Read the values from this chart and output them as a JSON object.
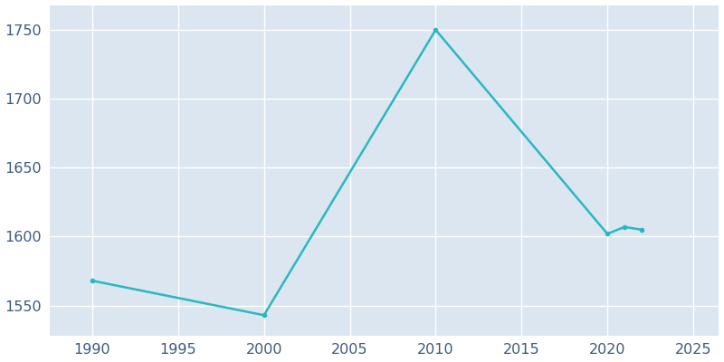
{
  "years": [
    1990,
    2000,
    2010,
    2020,
    2021,
    2022
  ],
  "population": [
    1568,
    1543,
    1750,
    1602,
    1607,
    1605
  ],
  "line_color": "#29B8C2",
  "line_width": 1.8,
  "marker": "o",
  "marker_size": 3,
  "plot_bg_color": "#dce6f0",
  "fig_bg_color": "#ffffff",
  "xlim": [
    1987.5,
    2026.5
  ],
  "ylim": [
    1528,
    1768
  ],
  "yticks": [
    1550,
    1600,
    1650,
    1700,
    1750
  ],
  "xticks": [
    1990,
    1995,
    2000,
    2005,
    2010,
    2015,
    2020,
    2025
  ],
  "grid_color": "#ffffff",
  "grid_alpha": 1.0,
  "grid_linewidth": 1.0,
  "tick_color": "#3d5a80",
  "tick_fontsize": 11.5
}
